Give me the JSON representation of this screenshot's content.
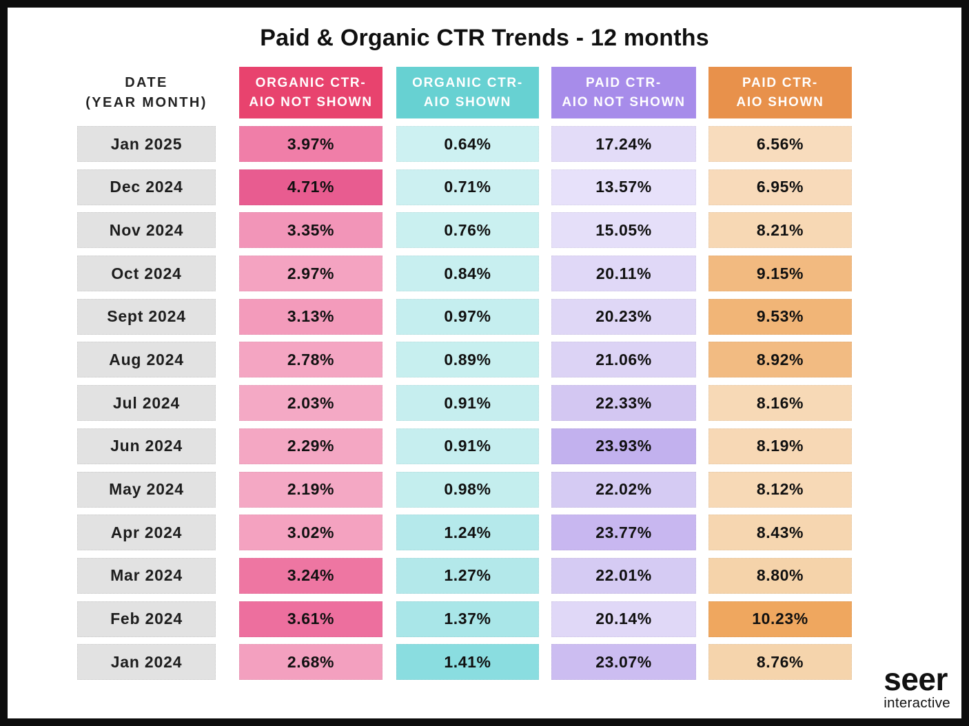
{
  "title": "Paid & Organic CTR Trends - 12 months",
  "date_header": {
    "line1": "DATE",
    "line2": "(YEAR MONTH)"
  },
  "date_cell_bg": "#E2E2E2",
  "columns": [
    {
      "id": "organic-ctr-aio-not-shown",
      "line1": "ORGANIC CTR-",
      "line2": "AIO NOT SHOWN",
      "header_bg": "#E8436E",
      "header_text": "#FFFFFF"
    },
    {
      "id": "organic-ctr-aio-shown",
      "line1": "ORGANIC CTR-",
      "line2": "AIO SHOWN",
      "header_bg": "#67D1D2",
      "header_text": "#FFFFFF"
    },
    {
      "id": "paid-ctr-aio-not-shown",
      "line1": "PAID CTR-",
      "line2": "AIO NOT SHOWN",
      "header_bg": "#A78CEA",
      "header_text": "#FFFFFF"
    },
    {
      "id": "paid-ctr-aio-shown",
      "line1": "PAID CTR-",
      "line2": "AIO SHOWN",
      "header_bg": "#E8914B",
      "header_text": "#FFFFFF"
    }
  ],
  "rows": [
    {
      "date": "Jan 2025",
      "cells": [
        {
          "text": "3.97%",
          "bg": "#F07EA8"
        },
        {
          "text": "0.64%",
          "bg": "#CDF1F2"
        },
        {
          "text": "17.24%",
          "bg": "#E3DCF8"
        },
        {
          "text": "6.56%",
          "bg": "#F8DCBD"
        }
      ]
    },
    {
      "date": "Dec 2024",
      "cells": [
        {
          "text": "4.71%",
          "bg": "#E85C90"
        },
        {
          "text": "0.71%",
          "bg": "#CCF0F1"
        },
        {
          "text": "13.57%",
          "bg": "#E7E1FA"
        },
        {
          "text": "6.95%",
          "bg": "#F8DABA"
        }
      ]
    },
    {
      "date": "Nov 2024",
      "cells": [
        {
          "text": "3.35%",
          "bg": "#F295B8"
        },
        {
          "text": "0.76%",
          "bg": "#CAF0F0"
        },
        {
          "text": "15.05%",
          "bg": "#E5DFF9"
        },
        {
          "text": "8.21%",
          "bg": "#F7D8B4"
        }
      ]
    },
    {
      "date": "Oct 2024",
      "cells": [
        {
          "text": "2.97%",
          "bg": "#F4A3C1"
        },
        {
          "text": "0.84%",
          "bg": "#C8EFF0"
        },
        {
          "text": "20.11%",
          "bg": "#E0D8F7"
        },
        {
          "text": "9.15%",
          "bg": "#F2BA80"
        }
      ]
    },
    {
      "date": "Sept 2024",
      "cells": [
        {
          "text": "3.13%",
          "bg": "#F39BBB"
        },
        {
          "text": "0.97%",
          "bg": "#C5EEEF"
        },
        {
          "text": "20.23%",
          "bg": "#DFD7F6"
        },
        {
          "text": "9.53%",
          "bg": "#F1B577"
        }
      ]
    },
    {
      "date": "Aug 2024",
      "cells": [
        {
          "text": "2.78%",
          "bg": "#F4A5C2"
        },
        {
          "text": "0.89%",
          "bg": "#C7EFEF"
        },
        {
          "text": "21.06%",
          "bg": "#DCD3F5"
        },
        {
          "text": "8.92%",
          "bg": "#F2BB82"
        }
      ]
    },
    {
      "date": "Jul 2024",
      "cells": [
        {
          "text": "2.03%",
          "bg": "#F4A9C5"
        },
        {
          "text": "0.91%",
          "bg": "#C6EEEF"
        },
        {
          "text": "22.33%",
          "bg": "#D3C7F2"
        },
        {
          "text": "8.16%",
          "bg": "#F7D9B6"
        }
      ]
    },
    {
      "date": "Jun 2024",
      "cells": [
        {
          "text": "2.29%",
          "bg": "#F4A7C3"
        },
        {
          "text": "0.91%",
          "bg": "#C6EEEF"
        },
        {
          "text": "23.93%",
          "bg": "#C2B1EE"
        },
        {
          "text": "8.19%",
          "bg": "#F7D8B5"
        }
      ]
    },
    {
      "date": "May 2024",
      "cells": [
        {
          "text": "2.19%",
          "bg": "#F4A8C4"
        },
        {
          "text": "0.98%",
          "bg": "#C4EEEE"
        },
        {
          "text": "22.02%",
          "bg": "#D5CBF3"
        },
        {
          "text": "8.12%",
          "bg": "#F7D9B6"
        }
      ]
    },
    {
      "date": "Apr 2024",
      "cells": [
        {
          "text": "3.02%",
          "bg": "#F4A2C0"
        },
        {
          "text": "1.24%",
          "bg": "#B5E9EB"
        },
        {
          "text": "23.77%",
          "bg": "#C8B7F0"
        },
        {
          "text": "8.43%",
          "bg": "#F6D6B0"
        }
      ]
    },
    {
      "date": "Mar 2024",
      "cells": [
        {
          "text": "3.24%",
          "bg": "#EE76A2"
        },
        {
          "text": "1.27%",
          "bg": "#B3E8EA"
        },
        {
          "text": "22.01%",
          "bg": "#D5CBF3"
        },
        {
          "text": "8.80%",
          "bg": "#F5D3AA"
        }
      ]
    },
    {
      "date": "Feb 2024",
      "cells": [
        {
          "text": "3.61%",
          "bg": "#ED6F9E"
        },
        {
          "text": "1.37%",
          "bg": "#A9E6E8"
        },
        {
          "text": "20.14%",
          "bg": "#E0D8F7"
        },
        {
          "text": "10.23%",
          "bg": "#EFA75F"
        }
      ]
    },
    {
      "date": "Jan 2024",
      "cells": [
        {
          "text": "2.68%",
          "bg": "#F3A0BF"
        },
        {
          "text": "1.41%",
          "bg": "#8ADDE0"
        },
        {
          "text": "23.07%",
          "bg": "#CCBDF1"
        },
        {
          "text": "8.76%",
          "bg": "#F5D4AC"
        }
      ]
    }
  ],
  "logo": {
    "brand": "seer",
    "sub": "interactive"
  },
  "chart_data": {
    "type": "heatmap",
    "title": "Paid & Organic CTR Trends - 12 months",
    "row_label": "DATE (YEAR MONTH)",
    "unit": "%",
    "categories": [
      "Jan 2025",
      "Dec 2024",
      "Nov 2024",
      "Oct 2024",
      "Sept 2024",
      "Aug 2024",
      "Jul 2024",
      "Jun 2024",
      "May 2024",
      "Apr 2024",
      "Mar 2024",
      "Feb 2024",
      "Jan 2024"
    ],
    "series": [
      {
        "name": "Organic CTR- AIO Not Shown",
        "values": [
          3.97,
          4.71,
          3.35,
          2.97,
          3.13,
          2.78,
          2.03,
          2.29,
          2.19,
          3.02,
          3.24,
          3.61,
          2.68
        ]
      },
      {
        "name": "Organic CTR- AIO Shown",
        "values": [
          0.64,
          0.71,
          0.76,
          0.84,
          0.97,
          0.89,
          0.91,
          0.91,
          0.98,
          1.24,
          1.27,
          1.37,
          1.41
        ]
      },
      {
        "name": "Paid CTR- AIO Not Shown",
        "values": [
          17.24,
          13.57,
          15.05,
          20.11,
          20.23,
          21.06,
          22.33,
          23.93,
          22.02,
          23.77,
          22.01,
          20.14,
          23.07
        ]
      },
      {
        "name": "Paid CTR- AIO Shown",
        "values": [
          6.56,
          6.95,
          8.21,
          9.15,
          9.53,
          8.92,
          8.16,
          8.19,
          8.12,
          8.43,
          8.8,
          10.23,
          8.76
        ]
      }
    ],
    "legend_position": "top",
    "grid": false
  }
}
